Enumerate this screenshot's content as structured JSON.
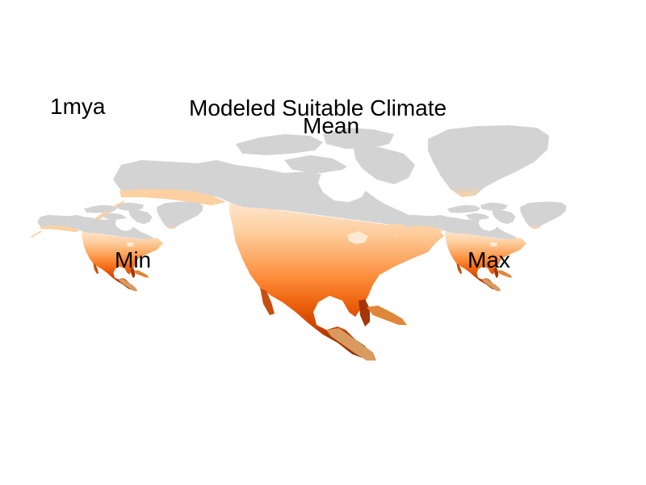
{
  "time_label": "1mya",
  "title": "Modeled Suitable Climate",
  "panels": {
    "mean": "Mean",
    "min": "Min",
    "max": "Max"
  },
  "colors": {
    "unsuitable": "#d3d3d3",
    "suitability_ramp": [
      "#fee6ce",
      "#fdd0a2",
      "#fdae6b",
      "#fd8d3c",
      "#f16913",
      "#d94801",
      "#a63603",
      "#7f2704"
    ]
  },
  "map_region": "North America"
}
